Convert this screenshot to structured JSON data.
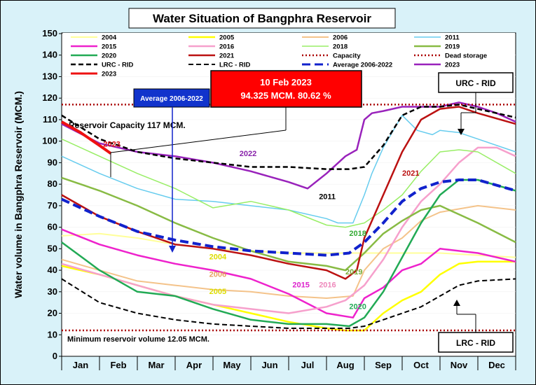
{
  "chart_data": {
    "type": "line",
    "title": "Water Situation of Bangphra Reservoir",
    "ylabel": "Water volume in Bangphra Reservoir (MCM.)",
    "xlabel": "",
    "ylim": [
      0,
      150
    ],
    "yticks": [
      0,
      10,
      20,
      30,
      40,
      50,
      60,
      70,
      80,
      90,
      100,
      110,
      120,
      130,
      140,
      150
    ],
    "months": [
      "Jan",
      "Feb",
      "Mar",
      "Apr",
      "May",
      "Jun",
      "Jul",
      "Aug",
      "Sep",
      "Oct",
      "Nov",
      "Dec"
    ],
    "x_unit": "month index (0 = start of Jan, 12 = end of Dec)",
    "series": [
      {
        "name": "2004",
        "color": "#ffff99",
        "dash": "",
        "width": 2,
        "x": [
          0,
          1,
          2,
          3,
          4,
          5,
          6,
          7,
          8,
          9,
          10,
          11,
          12
        ],
        "values": [
          56,
          57,
          55,
          52,
          50,
          49,
          48,
          48,
          48,
          48,
          48,
          47,
          46
        ]
      },
      {
        "name": "2005",
        "color": "#ffff00",
        "dash": "",
        "width": 2.5,
        "x": [
          0,
          1,
          2,
          3,
          4,
          5,
          6,
          7,
          7.5,
          8,
          8.5,
          9,
          9.5,
          10,
          10.5,
          11,
          12
        ],
        "values": [
          42,
          38,
          33,
          28,
          24,
          20,
          16,
          13,
          12,
          12,
          20,
          26,
          30,
          38,
          43,
          44,
          44
        ]
      },
      {
        "name": "2006",
        "color": "#f4c38a",
        "dash": "",
        "width": 2,
        "x": [
          0,
          1,
          2,
          3,
          4,
          5,
          6,
          7,
          7.7,
          8,
          8.5,
          9,
          9.5,
          10,
          11,
          12
        ],
        "values": [
          45,
          40,
          35,
          33,
          31,
          30,
          28,
          27,
          28,
          40,
          50,
          55,
          63,
          67,
          70,
          68
        ]
      },
      {
        "name": "2011",
        "color": "#66ccee",
        "dash": "",
        "width": 1.5,
        "x": [
          0,
          1,
          2,
          3,
          4,
          5,
          6,
          7,
          7.3,
          7.7,
          8,
          8.2,
          8.5,
          9,
          9.4,
          9.8,
          10,
          10.5,
          11,
          12
        ],
        "values": [
          93,
          85,
          78,
          73,
          72,
          70,
          68,
          64,
          62,
          62,
          75,
          85,
          97,
          112,
          105,
          103,
          105,
          104,
          101,
          95
        ]
      },
      {
        "name": "2015",
        "color": "#ee22cc",
        "dash": "",
        "width": 2.5,
        "x": [
          0,
          1,
          2,
          3,
          4,
          5,
          6,
          7,
          7.7,
          8,
          8.5,
          9,
          9.5,
          10,
          11,
          12
        ],
        "values": [
          59,
          52,
          47,
          43,
          40,
          36,
          29,
          20,
          18,
          27,
          32,
          40,
          43,
          50,
          48,
          44
        ]
      },
      {
        "name": "2016",
        "color": "#f6a0cc",
        "dash": "",
        "width": 2.5,
        "x": [
          0,
          1,
          2,
          3,
          4,
          5,
          6,
          7,
          7.5,
          8,
          8.5,
          9,
          9.5,
          10,
          10.5,
          11,
          11.5,
          12
        ],
        "values": [
          43,
          38,
          33,
          28,
          24,
          22,
          20,
          23,
          26,
          33,
          45,
          60,
          72,
          80,
          90,
          97,
          97,
          93
        ]
      },
      {
        "name": "2018",
        "color": "#99ee66",
        "dash": "",
        "width": 1.5,
        "x": [
          0,
          1,
          2,
          3,
          4,
          5,
          6,
          7,
          7.5,
          8,
          8.5,
          9,
          9.5,
          10,
          10.5,
          11,
          12
        ],
        "values": [
          101,
          93,
          85,
          78,
          69,
          72,
          68,
          61,
          60,
          62,
          68,
          75,
          86,
          95,
          96,
          95,
          85
        ]
      },
      {
        "name": "2019",
        "color": "#88bb44",
        "dash": "",
        "width": 2.5,
        "x": [
          0,
          1,
          2,
          3,
          4,
          5,
          6,
          7,
          7.5,
          8,
          8.5,
          9,
          9.5,
          10,
          11,
          12
        ],
        "values": [
          83,
          77,
          70,
          62,
          55,
          49,
          44,
          42,
          40,
          48,
          57,
          63,
          68,
          70,
          62,
          53
        ]
      },
      {
        "name": "2020",
        "color": "#22aa55",
        "dash": "",
        "width": 2.5,
        "x": [
          0,
          1,
          2,
          3,
          4,
          5,
          6,
          7,
          7.6,
          8,
          8.5,
          9,
          9.5,
          10,
          10.5,
          11,
          12
        ],
        "values": [
          53,
          40,
          30,
          28,
          22,
          17,
          15,
          15,
          14,
          18,
          30,
          46,
          62,
          75,
          82,
          82,
          77
        ]
      },
      {
        "name": "2021",
        "color": "#bb1111",
        "dash": "",
        "width": 2.5,
        "x": [
          0,
          1,
          2,
          3,
          4,
          5,
          6,
          7,
          7.5,
          7.8,
          8,
          8.5,
          9,
          9.5,
          10,
          10.5,
          11,
          12
        ],
        "values": [
          75,
          65,
          58,
          52,
          50,
          47,
          43,
          40,
          36,
          40,
          55,
          75,
          95,
          110,
          115,
          116,
          113,
          108
        ]
      },
      {
        "name": "2022",
        "color": "#9922bb",
        "dash": "",
        "width": 2.5,
        "x": [
          0,
          1,
          2,
          3,
          4,
          5,
          6,
          6.5,
          7,
          7.5,
          7.8,
          8,
          8.2,
          8.5,
          9,
          9.5,
          10,
          10.5,
          11,
          11.5,
          12
        ],
        "values": [
          108,
          99,
          95,
          93,
          90,
          86,
          81,
          78,
          85,
          93,
          96,
          110,
          113,
          114,
          116,
          116,
          116,
          118,
          116,
          113,
          109
        ]
      },
      {
        "name": "2023",
        "color": "#ee1111",
        "dash": "",
        "width": 4,
        "x": [
          0,
          0.5,
          1,
          1.3
        ],
        "values": [
          109,
          104,
          98,
          94.3
        ]
      },
      {
        "name": "Capacity",
        "color": "#aa0000",
        "dash": "2 3",
        "width": 2.5,
        "x": [
          0,
          12
        ],
        "values": [
          117,
          117
        ]
      },
      {
        "name": "Dead storage",
        "color": "#aa0000",
        "dash": "2 3",
        "width": 2.5,
        "x": [
          0,
          12
        ],
        "values": [
          12.05,
          12.05
        ]
      },
      {
        "name": "URC - RID",
        "color": "#000000",
        "dash": "7 4",
        "width": 2.5,
        "x": [
          0,
          1,
          2,
          3,
          4,
          5,
          6,
          7,
          7.6,
          8,
          8.5,
          9,
          9.5,
          10,
          10.5,
          11,
          12
        ],
        "values": [
          112,
          101,
          95,
          92,
          90,
          88,
          88,
          87,
          87,
          88,
          98,
          112,
          116,
          116,
          117,
          115,
          111
        ]
      },
      {
        "name": "LRC - RID",
        "color": "#000000",
        "dash": "7 4",
        "width": 2,
        "x": [
          0,
          1,
          2,
          3,
          4,
          5,
          6,
          7,
          7.6,
          8,
          8.5,
          9,
          9.5,
          10,
          10.5,
          11,
          12
        ],
        "values": [
          36,
          25,
          20,
          17,
          15,
          14,
          13,
          13,
          13,
          14,
          17,
          20,
          23,
          28,
          33,
          35,
          36
        ]
      },
      {
        "name": "Average 2006-2022",
        "color": "#1122cc",
        "dash": "12 6",
        "width": 4,
        "x": [
          0,
          1,
          2,
          3,
          4,
          5,
          6,
          7,
          7.6,
          8,
          8.5,
          9,
          9.5,
          10,
          10.5,
          11,
          12
        ],
        "values": [
          73,
          65,
          58,
          54,
          51,
          49,
          48,
          47,
          48,
          53,
          62,
          72,
          78,
          81,
          82,
          82,
          77
        ]
      }
    ],
    "legend_order": [
      "2004",
      "2005",
      "2006",
      "2011",
      "2015",
      "2016",
      "2018",
      "2019",
      "2020",
      "2021",
      "Capacity",
      "Dead storage",
      "URC - RID",
      "LRC - RID",
      "Average 2006-2022",
      "2023",
      "2023"
    ],
    "legend_placement": "top (inside plot area)",
    "series_labels": [
      {
        "text": "2023",
        "x": 1.1,
        "y": 97.5,
        "color": "#dd1111"
      },
      {
        "text": "2022",
        "x": 4.7,
        "y": 93,
        "color": "#8822aa"
      },
      {
        "text": "2011",
        "x": 6.8,
        "y": 73,
        "color": "#22aaccc"
      },
      {
        "text": "2021",
        "x": 9.0,
        "y": 84,
        "color": "#bb1111"
      },
      {
        "text": "2018",
        "x": 7.6,
        "y": 56,
        "color": "#33aa33"
      },
      {
        "text": "2004",
        "x": 3.9,
        "y": 45,
        "color": "#dddd00"
      },
      {
        "text": "2006",
        "x": 3.9,
        "y": 37,
        "color": "#e8a060"
      },
      {
        "text": "2005",
        "x": 3.9,
        "y": 29,
        "color": "#dddd00"
      },
      {
        "text": "2015",
        "x": 6.1,
        "y": 32,
        "color": "#dd22cc"
      },
      {
        "text": "2016",
        "x": 6.8,
        "y": 32,
        "color": "#ee88bb"
      },
      {
        "text": "2019",
        "x": 7.5,
        "y": 38,
        "color": "#77aa33"
      },
      {
        "text": "2020",
        "x": 7.6,
        "y": 22,
        "color": "#22aa55"
      }
    ],
    "annotations": {
      "capacity_text": "Reservoir Capacity 117 MCM.",
      "dead_storage_text": "Minimum reservoir volume 12.05 MCM.",
      "current_date": "10 Feb 2023",
      "current_value": "94.325 MCM. 80.62 %",
      "average_label": "Average 2006-2022",
      "urc_label": "URC - RID",
      "lrc_label": "LRC - RID"
    }
  }
}
